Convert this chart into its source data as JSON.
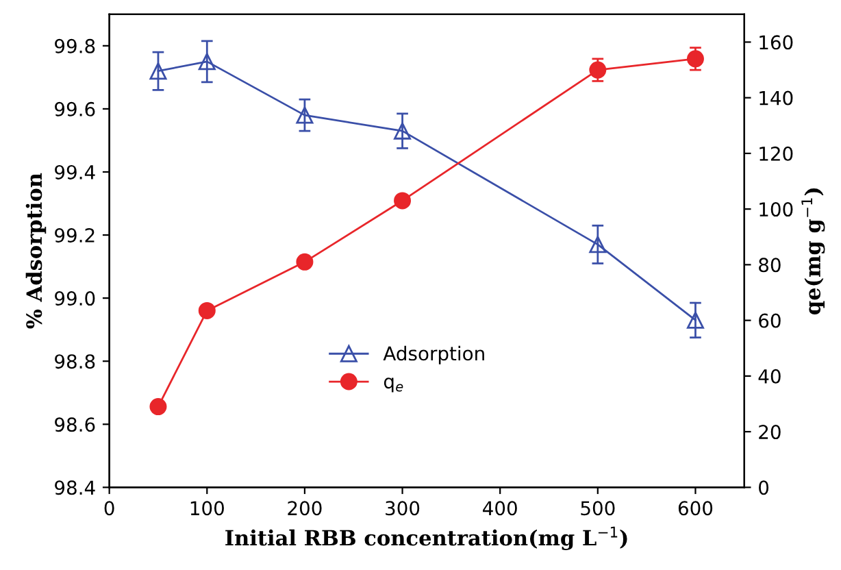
{
  "chart_data": {
    "type": "line",
    "xlabel": "Initial RBB concentration(mg L$^{−1}$)",
    "ylabel": "% Adsorption",
    "y2label": "qe(mg g$^{−1}$)",
    "x": [
      50,
      100,
      200,
      300,
      500,
      600
    ],
    "series": [
      {
        "name": "Adsorption",
        "color": "#3a4fa8",
        "marker": "triangle",
        "values": [
          99.72,
          99.75,
          99.58,
          99.53,
          99.17,
          98.93
        ],
        "errors": [
          0.06,
          0.065,
          0.05,
          0.055,
          0.06,
          0.055
        ]
      },
      {
        "name": "q$_{e}$",
        "color": "#e8262a",
        "marker": "circle",
        "axis": "y2",
        "values": [
          29,
          63.5,
          81,
          103,
          150,
          154
        ],
        "errors": [
          null,
          null,
          null,
          null,
          4,
          4
        ]
      }
    ],
    "xlim": [
      0,
      650
    ],
    "xticks": [
      0,
      100,
      200,
      300,
      400,
      500,
      600
    ],
    "ylim": [
      98.4,
      99.9
    ],
    "yticks": [
      98.4,
      98.6,
      98.8,
      {
        "value": 99,
        "label": "99.0"
      },
      99.2,
      99.4,
      99.6,
      99.8
    ],
    "y2lim": [
      0,
      170
    ],
    "y2ticks": [
      0,
      20,
      40,
      60,
      80,
      100,
      120,
      140,
      160
    ],
    "legend": "center",
    "grid": false,
    "line_style": "solid"
  }
}
